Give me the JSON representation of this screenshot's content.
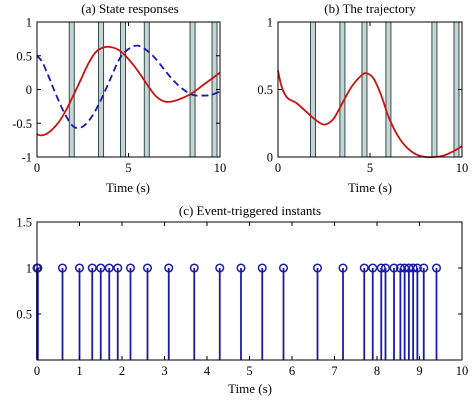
{
  "colors": {
    "red": "#cc1111",
    "blue": "#1a1aaa",
    "stem": "#1a1aaa",
    "band_dark": "#2f4f4f",
    "band_light": "#c8d4d4"
  },
  "chart_data": [
    {
      "id": "a",
      "type": "line",
      "title": "(a) State responses",
      "xlabel": "Time (s)",
      "xlim": [
        0,
        10
      ],
      "ylim": [
        -1,
        1
      ],
      "xticks": [
        "0",
        "5",
        "10"
      ],
      "xtick_values": [
        0,
        5,
        10
      ],
      "yticks": [
        "-1",
        "-0.5",
        "0",
        "0.5",
        "1"
      ],
      "ytick_values": [
        -1,
        -0.5,
        0,
        0.5,
        1
      ],
      "event_bands": [
        1.9,
        3.5,
        4.7,
        6.0,
        8.5,
        9.7
      ],
      "series": [
        {
          "style": "solid",
          "color": "red",
          "x": [
            0,
            0.2,
            0.5,
            0.8,
            1.2,
            1.6,
            2.0,
            2.4,
            2.8,
            3.2,
            3.6,
            4.0,
            4.5,
            5.0,
            5.5,
            6.0,
            6.5,
            7.0,
            7.5,
            8.0,
            8.5,
            9.0,
            9.5,
            10.0
          ],
          "y": [
            -0.66,
            -0.68,
            -0.66,
            -0.6,
            -0.48,
            -0.3,
            -0.08,
            0.15,
            0.38,
            0.55,
            0.62,
            0.63,
            0.58,
            0.45,
            0.28,
            0.08,
            -0.1,
            -0.18,
            -0.17,
            -0.12,
            -0.05,
            0.05,
            0.15,
            0.25
          ]
        },
        {
          "style": "dashed",
          "color": "blue",
          "x": [
            0,
            0.3,
            0.7,
            1.0,
            1.5,
            2.0,
            2.5,
            3.0,
            3.5,
            4.0,
            4.5,
            5.0,
            5.5,
            6.0,
            6.5,
            7.0,
            7.5,
            8.0,
            8.5,
            9.0,
            9.5,
            10.0
          ],
          "y": [
            0.5,
            0.4,
            0.15,
            -0.05,
            -0.35,
            -0.55,
            -0.55,
            -0.4,
            -0.15,
            0.15,
            0.45,
            0.6,
            0.65,
            0.58,
            0.45,
            0.28,
            0.12,
            0.0,
            -0.08,
            -0.09,
            -0.08,
            -0.03
          ]
        }
      ]
    },
    {
      "id": "b",
      "type": "line",
      "title": "(b) The trajectory",
      "xlabel": "Time (s)",
      "xlim": [
        0,
        10
      ],
      "ylim": [
        0,
        1
      ],
      "xticks": [
        "0",
        "5",
        "10"
      ],
      "xtick_values": [
        0,
        5,
        10
      ],
      "yticks": [
        "0",
        "0.5",
        "1"
      ],
      "ytick_values": [
        0,
        0.5,
        1
      ],
      "event_bands": [
        1.9,
        3.5,
        4.7,
        6.0,
        8.5,
        9.7
      ],
      "series": [
        {
          "style": "solid",
          "color": "red",
          "x": [
            0,
            0.2,
            0.5,
            1.0,
            1.5,
            2.0,
            2.5,
            3.0,
            3.5,
            4.0,
            4.5,
            4.8,
            5.2,
            5.6,
            6.0,
            6.5,
            7.0,
            7.5,
            8.0,
            8.5,
            9.0,
            9.5,
            10.0
          ],
          "y": [
            0.64,
            0.52,
            0.44,
            0.4,
            0.34,
            0.28,
            0.24,
            0.28,
            0.4,
            0.52,
            0.6,
            0.62,
            0.58,
            0.46,
            0.3,
            0.16,
            0.07,
            0.02,
            0.0,
            0.0,
            0.01,
            0.04,
            0.08
          ]
        }
      ]
    },
    {
      "id": "c",
      "type": "stem",
      "title": "(c) Event-triggered instants",
      "xlabel": "Time (s)",
      "xlim": [
        0,
        10
      ],
      "ylim": [
        0,
        1.5
      ],
      "xticks": [
        "0",
        "1",
        "2",
        "3",
        "4",
        "5",
        "6",
        "7",
        "8",
        "9",
        "10"
      ],
      "xtick_values": [
        0,
        1,
        2,
        3,
        4,
        5,
        6,
        7,
        8,
        9,
        10
      ],
      "yticks": [
        "0.5",
        "1",
        "1.5"
      ],
      "ytick_values": [
        0.5,
        1,
        1.5
      ],
      "stem_color": "stem",
      "x": [
        0.0,
        0.02,
        0.6,
        1.0,
        1.3,
        1.5,
        1.7,
        1.9,
        2.2,
        2.6,
        3.1,
        3.7,
        4.3,
        4.8,
        5.3,
        5.8,
        6.6,
        7.2,
        7.7,
        7.9,
        8.1,
        8.2,
        8.4,
        8.55,
        8.65,
        8.75,
        8.85,
        8.95,
        9.1,
        9.4
      ],
      "y": [
        1,
        1,
        1,
        1,
        1,
        1,
        1,
        1,
        1,
        1,
        1,
        1,
        1,
        1,
        1,
        1,
        1,
        1,
        1,
        1,
        1,
        1,
        1,
        1,
        1,
        1,
        1,
        1,
        1,
        1
      ]
    }
  ]
}
